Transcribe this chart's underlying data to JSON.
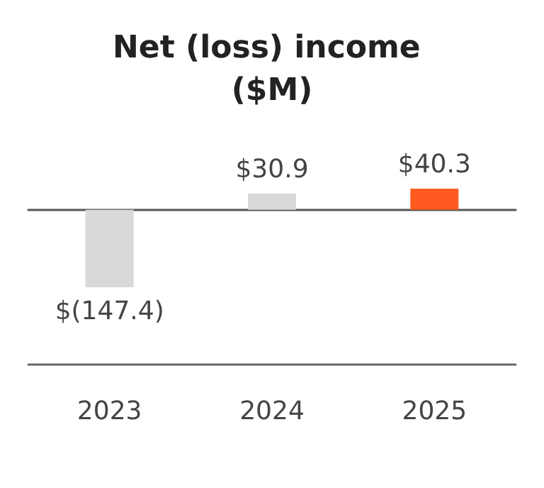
{
  "chart_data": {
    "type": "bar",
    "title": "Net (loss) income ($M)",
    "categories": [
      "2023",
      "2024",
      "2025"
    ],
    "values": [
      -147.4,
      30.9,
      40.3
    ],
    "colors": [
      "#d9d9d9",
      "#d9d9d9",
      "#ff5a1f"
    ],
    "value_labels": [
      "$(147.4)",
      "$30.9",
      "$40.3"
    ],
    "tick_labels": "x"
  }
}
